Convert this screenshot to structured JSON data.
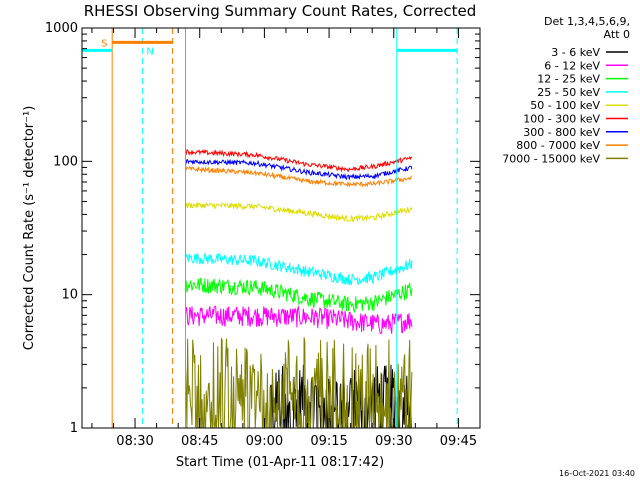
{
  "chart_data": {
    "type": "line",
    "title": "RHESSI Observing Summary Count Rates, Corrected",
    "xlabel": "Start Time (01-Apr-11 08:17:42)",
    "ylabel": "Corrected Count Rate (s⁻¹ detector⁻¹)",
    "y_scale": "log",
    "ylim": [
      1,
      1000
    ],
    "xlim_minutes": [
      0,
      92.3
    ],
    "x_ticks": [
      {
        "label": "08:30",
        "min": 12.3
      },
      {
        "label": "08:45",
        "min": 27.3
      },
      {
        "label": "09:00",
        "min": 42.3
      },
      {
        "label": "09:15",
        "min": 57.3
      },
      {
        "label": "09:30",
        "min": 72.3
      },
      {
        "label": "09:45",
        "min": 87.3
      }
    ],
    "y_ticks": [
      {
        "label": "1",
        "value": 1
      },
      {
        "label": "10",
        "value": 10
      },
      {
        "label": "100",
        "value": 100
      },
      {
        "label": "1000",
        "value": 1000
      }
    ],
    "legend": {
      "position": "top-right",
      "header": [
        "Det 1,3,4,5,6,9,",
        "Att 0"
      ]
    },
    "series": [
      {
        "name": "3 - 6 keV",
        "color": "#000000",
        "kind": "noise",
        "start": 43.5,
        "end": 76.5,
        "lo": 1,
        "hi": 3.0
      },
      {
        "name": "6 - 12 keV",
        "color": "#ff00ff",
        "kind": "band",
        "start": 24.0,
        "end": 76.5,
        "x": [
          24,
          40,
          55,
          64,
          70,
          76.5
        ],
        "y": [
          7,
          7,
          6.8,
          6.3,
          6.0,
          6.5
        ],
        "jitter": 0.18
      },
      {
        "name": "12 - 25 keV",
        "color": "#00ff00",
        "kind": "band",
        "start": 24.0,
        "end": 76.5,
        "x": [
          24,
          40,
          52,
          62,
          68,
          76.5
        ],
        "y": [
          12,
          11.5,
          9.5,
          8.5,
          8.8,
          11
        ],
        "jitter": 0.14
      },
      {
        "name": "25 - 50 keV",
        "color": "#00ffff",
        "kind": "band",
        "start": 24.0,
        "end": 76.5,
        "x": [
          24,
          40,
          52,
          62,
          68,
          76.5
        ],
        "y": [
          19,
          18,
          15,
          13,
          13.5,
          17
        ],
        "jitter": 0.1
      },
      {
        "name": "50 - 100 keV",
        "color": "#dddd00",
        "kind": "band",
        "start": 24.0,
        "end": 76.5,
        "x": [
          24,
          40,
          52,
          62,
          68,
          76.5
        ],
        "y": [
          47,
          46,
          41,
          37,
          38,
          44
        ],
        "jitter": 0.05
      },
      {
        "name": "100 - 300 keV",
        "color": "#ff0000",
        "kind": "band",
        "start": 24.0,
        "end": 76.5,
        "x": [
          24,
          40,
          52,
          62,
          68,
          76.5
        ],
        "y": [
          118,
          112,
          95,
          87,
          92,
          106
        ],
        "jitter": 0.04
      },
      {
        "name": "300 - 800 keV",
        "color": "#0000ff",
        "kind": "band",
        "start": 24.0,
        "end": 76.5,
        "x": [
          24,
          40,
          52,
          62,
          68,
          76.5
        ],
        "y": [
          100,
          97,
          83,
          76,
          78,
          90
        ],
        "jitter": 0.04
      },
      {
        "name": "800 - 7000 keV",
        "color": "#ff8000",
        "kind": "band",
        "start": 24.0,
        "end": 76.5,
        "x": [
          24,
          40,
          52,
          62,
          68,
          76.5
        ],
        "y": [
          88,
          82,
          71,
          67,
          68,
          75
        ],
        "jitter": 0.04
      },
      {
        "name": "7000 - 15000 keV",
        "color": "#808000",
        "kind": "noise",
        "start": 24.0,
        "end": 76.5,
        "lo": 1,
        "hi": 5.0
      }
    ],
    "annotations": {
      "saa_label": "S",
      "night_label": "N",
      "saa_color": "#ff8000",
      "night_color": "#00ffff",
      "saa_bar": {
        "x0": 7.0,
        "x1": 21.0,
        "y": 780
      },
      "night_bars": [
        {
          "x0": 0,
          "x1": 7.0,
          "y": 680
        },
        {
          "x0": 73.0,
          "x1": 87.0,
          "y": 680
        }
      ],
      "orange_solid_x": [
        7.0,
        24.0
      ],
      "orange_dashed_x": 21.0,
      "cyan_solid_x": [
        0,
        73.0
      ],
      "cyan_dashed_x": [
        14.0,
        87.0
      ]
    },
    "footer_date": "16-Oct-2021 03:40"
  }
}
